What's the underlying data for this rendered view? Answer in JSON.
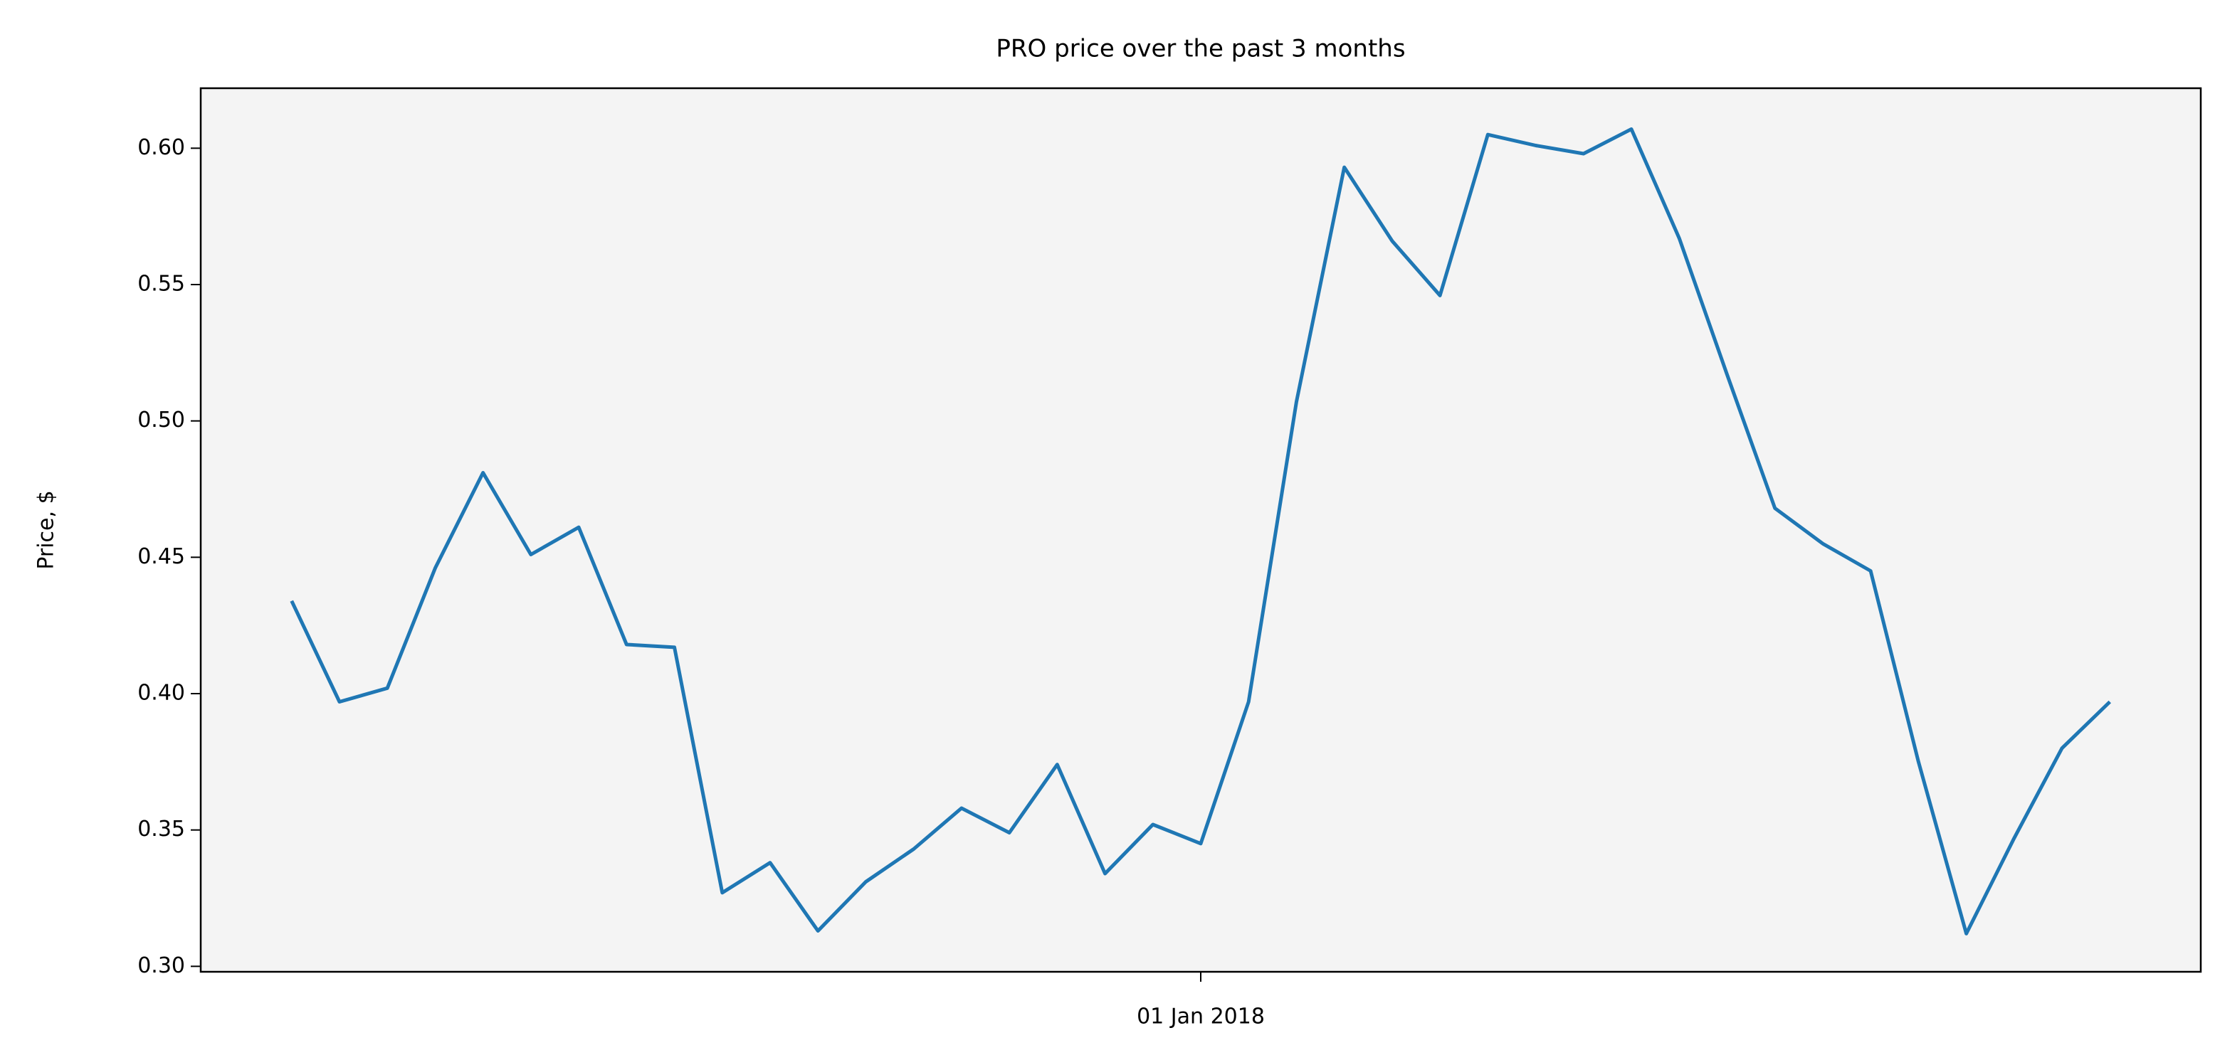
{
  "chart_data": {
    "type": "line",
    "title": "PRO price over the past 3 months",
    "ylabel": "Price, $",
    "x": [
      "2017-11-24",
      "2017-11-26",
      "2017-11-28",
      "2017-11-30",
      "2017-12-02",
      "2017-12-04",
      "2017-12-06",
      "2017-12-08",
      "2017-12-10",
      "2017-12-12",
      "2017-12-14",
      "2017-12-16",
      "2017-12-18",
      "2017-12-20",
      "2017-12-22",
      "2017-12-24",
      "2017-12-26",
      "2017-12-28",
      "2017-12-30",
      "2018-01-01",
      "2018-01-03",
      "2018-01-05",
      "2018-01-07",
      "2018-01-09",
      "2018-01-11",
      "2018-01-13",
      "2018-01-15",
      "2018-01-17",
      "2018-01-19",
      "2018-01-21",
      "2018-01-23",
      "2018-01-25",
      "2018-01-27",
      "2018-01-29",
      "2018-01-31",
      "2018-02-02",
      "2018-02-04",
      "2018-02-06",
      "2018-02-08"
    ],
    "series": [
      {
        "color": "#1f77b4",
        "values": [
          0.434,
          0.397,
          0.402,
          0.446,
          0.481,
          0.451,
          0.461,
          0.418,
          0.417,
          0.327,
          0.338,
          0.313,
          0.331,
          0.343,
          0.358,
          0.349,
          0.374,
          0.334,
          0.352,
          0.345,
          0.397,
          0.507,
          0.593,
          0.566,
          0.546,
          0.605,
          0.601,
          0.598,
          0.607,
          0.567,
          0.517,
          0.468,
          0.455,
          0.445,
          0.375,
          0.312,
          0.347,
          0.38,
          0.397
        ]
      }
    ],
    "xlim": [
      "2017-11-20T04:48:00Z",
      "2018-02-11T19:12:00Z"
    ],
    "xticks": [
      {
        "value": "2018-01-01",
        "label": "01 Jan 2018"
      }
    ],
    "ylim": [
      0.298,
      0.622
    ],
    "yticks": [
      {
        "value": 0.3,
        "label": "0.30"
      },
      0.35,
      {
        "value": 0.4,
        "label": "0.40"
      },
      0.45,
      {
        "value": 0.5,
        "label": "0.50"
      },
      0.55,
      {
        "value": 0.6,
        "label": "0.60"
      }
    ],
    "background": "#f4f4f4"
  }
}
